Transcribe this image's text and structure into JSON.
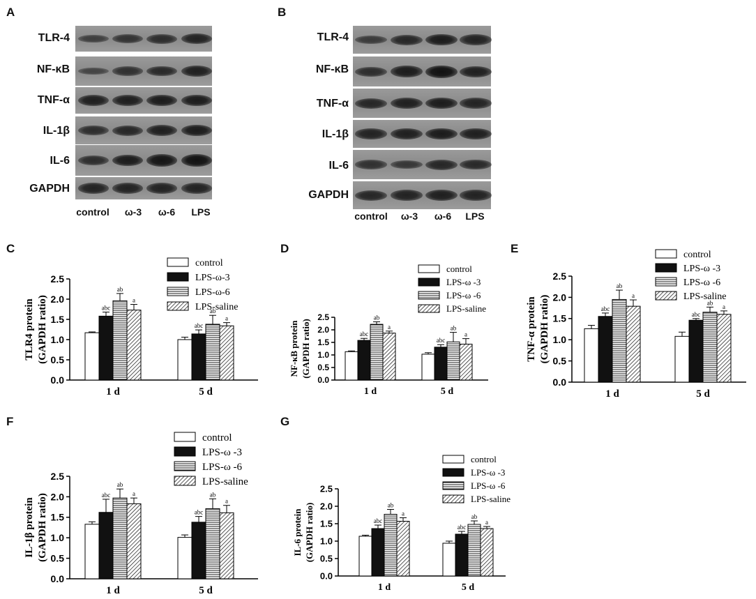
{
  "panel_letters": [
    "A",
    "B",
    "C",
    "D",
    "E",
    "F",
    "G"
  ],
  "blots": [
    {
      "rows": [
        "TLR-4",
        "NF-κB",
        "TNF-α",
        "IL-1β",
        "IL-6",
        "GAPDH"
      ],
      "lanes": [
        "control",
        "ω-3",
        "ω-6",
        "LPS"
      ]
    },
    {
      "rows": [
        "TLR-4",
        "NF-κB",
        "TNF-α",
        "IL-1β",
        "IL-6",
        "GAPDH"
      ],
      "lanes": [
        "control",
        "ω-3",
        "ω-6",
        "LPS"
      ]
    }
  ],
  "colors": {
    "bar_fill_control": "#ffffff",
    "bar_fill_omega3": "#111111",
    "bar_stroke": "#000000",
    "background_charts": "#faf7ee"
  },
  "chart_data": [
    {
      "panel": "C",
      "type": "bar",
      "categories": [
        "1 d",
        "5 d"
      ],
      "ylabel": "TLR4 protein (GAPDH ratio)",
      "ylim": [
        0,
        2.5
      ],
      "yticks": [
        "0.0",
        "0.5",
        "1.0",
        "1.5",
        "2.0",
        "2.5"
      ],
      "series": [
        {
          "name": "control",
          "pattern": "white",
          "values": [
            1.17,
            1.0
          ],
          "errors": [
            0.02,
            0.06
          ],
          "labels": [
            "",
            ""
          ]
        },
        {
          "name": "LPS-ω-3",
          "pattern": "black",
          "values": [
            1.58,
            1.14
          ],
          "errors": [
            0.1,
            0.1
          ],
          "labels": [
            "abc",
            "abc"
          ]
        },
        {
          "name": "LPS-ω-6",
          "pattern": "horizontal",
          "values": [
            1.96,
            1.38
          ],
          "errors": [
            0.18,
            0.22
          ],
          "labels": [
            "ab",
            "ab"
          ]
        },
        {
          "name": "LPS-saline",
          "pattern": "diagonal",
          "values": [
            1.73,
            1.34
          ],
          "errors": [
            0.14,
            0.08
          ],
          "labels": [
            "a",
            "a"
          ]
        }
      ]
    },
    {
      "panel": "D",
      "type": "bar",
      "categories": [
        "1 d",
        "5 d"
      ],
      "ylabel": "NF-κB protein (GAPDH ratio)",
      "ylim": [
        0,
        2.5
      ],
      "yticks": [
        "0.0",
        "0.5",
        "1.0",
        "1.5",
        "2.0",
        "2.5"
      ],
      "series": [
        {
          "name": "control",
          "pattern": "white",
          "values": [
            1.13,
            1.03
          ],
          "errors": [
            0.03,
            0.06
          ],
          "labels": [
            "",
            ""
          ]
        },
        {
          "name": "LPS-ω -3",
          "pattern": "black",
          "values": [
            1.58,
            1.31
          ],
          "errors": [
            0.08,
            0.1
          ],
          "labels": [
            "abc",
            "abc"
          ]
        },
        {
          "name": "LPS-ω -6",
          "pattern": "horizontal",
          "values": [
            2.22,
            1.52
          ],
          "errors": [
            0.1,
            0.38
          ],
          "labels": [
            "ab",
            "ab"
          ]
        },
        {
          "name": "LPS-saline",
          "pattern": "diagonal",
          "values": [
            1.87,
            1.43
          ],
          "errors": [
            0.08,
            0.22
          ],
          "labels": [
            "a",
            "a"
          ]
        }
      ]
    },
    {
      "panel": "E",
      "type": "bar",
      "categories": [
        "1 d",
        "5 d"
      ],
      "ylabel": "TNF-α protein (GAPDH ratio)",
      "ylim": [
        0,
        2.5
      ],
      "yticks": [
        "0.0",
        "0.5",
        "1.0",
        "1.5",
        "2.0",
        "2.5"
      ],
      "series": [
        {
          "name": "control",
          "pattern": "white",
          "values": [
            1.26,
            1.08
          ],
          "errors": [
            0.08,
            0.1
          ],
          "labels": [
            "",
            ""
          ]
        },
        {
          "name": "LPS-ω -3",
          "pattern": "black",
          "values": [
            1.55,
            1.46
          ],
          "errors": [
            0.08,
            0.04
          ],
          "labels": [
            "abc",
            "abc"
          ]
        },
        {
          "name": "LPS-ω -6",
          "pattern": "horizontal",
          "values": [
            1.95,
            1.65
          ],
          "errors": [
            0.22,
            0.12
          ],
          "labels": [
            "ab",
            "ab"
          ]
        },
        {
          "name": "LPS-saline",
          "pattern": "diagonal",
          "values": [
            1.79,
            1.6
          ],
          "errors": [
            0.15,
            0.08
          ],
          "labels": [
            "a",
            "a"
          ]
        }
      ]
    },
    {
      "panel": "F",
      "type": "bar",
      "categories": [
        "1 d",
        "5 d"
      ],
      "ylabel": "IL-1β protein (GAPDH ratio)",
      "ylim": [
        0,
        2.5
      ],
      "yticks": [
        "0.0",
        "0.5",
        "1.0",
        "1.5",
        "2.0",
        "2.5"
      ],
      "series": [
        {
          "name": "control",
          "pattern": "white",
          "values": [
            1.33,
            1.01
          ],
          "errors": [
            0.06,
            0.06
          ],
          "labels": [
            "",
            ""
          ]
        },
        {
          "name": "LPS-ω -3",
          "pattern": "black",
          "values": [
            1.62,
            1.38
          ],
          "errors": [
            0.32,
            0.14
          ],
          "labels": [
            "abc",
            "abc"
          ]
        },
        {
          "name": "LPS-ω -6",
          "pattern": "horizontal",
          "values": [
            1.97,
            1.71
          ],
          "errors": [
            0.22,
            0.24
          ],
          "labels": [
            "ab",
            "ab"
          ]
        },
        {
          "name": "LPS-saline",
          "pattern": "diagonal",
          "values": [
            1.83,
            1.61
          ],
          "errors": [
            0.14,
            0.18
          ],
          "labels": [
            "a",
            "a"
          ]
        }
      ]
    },
    {
      "panel": "G",
      "type": "bar",
      "categories": [
        "1 d",
        "5 d"
      ],
      "ylabel": "IL-6 protein (GAPDH ratio)",
      "ylim": [
        0,
        2.5
      ],
      "yticks": [
        "0.0",
        "0.5",
        "1.0",
        "1.5",
        "2.0",
        "2.5"
      ],
      "series": [
        {
          "name": "control",
          "pattern": "white",
          "values": [
            1.14,
            0.94
          ],
          "errors": [
            0.03,
            0.06
          ],
          "labels": [
            "",
            ""
          ]
        },
        {
          "name": "LPS-ω -3",
          "pattern": "black",
          "values": [
            1.36,
            1.2
          ],
          "errors": [
            0.1,
            0.08
          ],
          "labels": [
            "abc",
            "abc"
          ]
        },
        {
          "name": "LPS-ω -6",
          "pattern": "horizontal",
          "values": [
            1.77,
            1.48
          ],
          "errors": [
            0.14,
            0.1
          ],
          "labels": [
            "ab",
            "ab"
          ]
        },
        {
          "name": "LPS-saline",
          "pattern": "diagonal",
          "values": [
            1.57,
            1.36
          ],
          "errors": [
            0.1,
            0.06
          ],
          "labels": [
            "a",
            "a"
          ]
        }
      ]
    }
  ]
}
